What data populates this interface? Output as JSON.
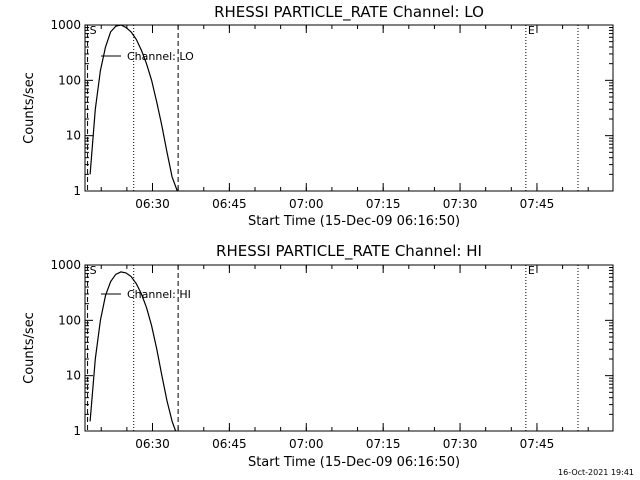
{
  "timestamp": "16-Oct-2021 19:41",
  "colors": {
    "background": "#ffffff",
    "foreground": "#000000"
  },
  "chart_data": [
    {
      "type": "line",
      "title": "RHESSI PARTICLE_RATE Channel: LO",
      "xlabel": "Start Time (15-Dec-09 06:16:50)",
      "ylabel": "Counts/sec",
      "y_scale": "log",
      "ylim": [
        1,
        1000
      ],
      "xlim": [
        "06:16:50",
        "07:59:50"
      ],
      "x_ticks": [
        "06:30",
        "06:45",
        "07:00",
        "07:15",
        "07:30",
        "07:45"
      ],
      "y_ticks": [
        "1",
        "10",
        "100",
        "1000"
      ],
      "legend": "upper-left",
      "series": [
        {
          "name": "Channel: LO",
          "x": [
            "06:17:50",
            "06:18:50",
            "06:19:50",
            "06:20:50",
            "06:21:50",
            "06:22:50",
            "06:23:50",
            "06:24:50",
            "06:25:50",
            "06:26:50",
            "06:27:50",
            "06:28:50",
            "06:29:50",
            "06:30:50",
            "06:31:50",
            "06:32:50",
            "06:33:50",
            "06:34:50"
          ],
          "y": [
            2,
            30,
            150,
            400,
            750,
            950,
            1000,
            900,
            750,
            550,
            350,
            200,
            100,
            40,
            15,
            5,
            1.8,
            1
          ]
        }
      ],
      "markers": [
        {
          "time": "06:17:20",
          "style": "dashed",
          "label": "S"
        },
        {
          "time": "06:26:20",
          "style": "dotted",
          "label": ""
        },
        {
          "time": "06:35:00",
          "style": "dashed",
          "label": ""
        },
        {
          "time": "07:42:50",
          "style": "dotted",
          "label": "E"
        },
        {
          "time": "07:53:00",
          "style": "dotted",
          "label": ""
        }
      ]
    },
    {
      "type": "line",
      "title": "RHESSI PARTICLE_RATE Channel: HI",
      "xlabel": "Start Time (15-Dec-09 06:16:50)",
      "ylabel": "Counts/sec",
      "y_scale": "log",
      "ylim": [
        1,
        1000
      ],
      "xlim": [
        "06:16:50",
        "07:59:50"
      ],
      "x_ticks": [
        "06:30",
        "06:45",
        "07:00",
        "07:15",
        "07:30",
        "07:45"
      ],
      "y_ticks": [
        "1",
        "10",
        "100",
        "1000"
      ],
      "legend": "upper-left",
      "series": [
        {
          "name": "Channel: HI",
          "x": [
            "06:17:50",
            "06:18:50",
            "06:19:50",
            "06:20:50",
            "06:21:50",
            "06:22:50",
            "06:23:50",
            "06:24:50",
            "06:25:50",
            "06:26:50",
            "06:27:50",
            "06:28:50",
            "06:29:50",
            "06:30:50",
            "06:31:50",
            "06:32:50",
            "06:33:50",
            "06:34:30"
          ],
          "y": [
            1.5,
            20,
            100,
            280,
            500,
            680,
            750,
            720,
            620,
            460,
            300,
            170,
            80,
            30,
            10,
            3.5,
            1.5,
            1
          ]
        }
      ],
      "markers": [
        {
          "time": "06:17:20",
          "style": "dashed",
          "label": "S"
        },
        {
          "time": "06:26:20",
          "style": "dotted",
          "label": ""
        },
        {
          "time": "06:35:00",
          "style": "dashed",
          "label": ""
        },
        {
          "time": "07:42:50",
          "style": "dotted",
          "label": "E"
        },
        {
          "time": "07:53:00",
          "style": "dotted",
          "label": ""
        }
      ]
    }
  ]
}
